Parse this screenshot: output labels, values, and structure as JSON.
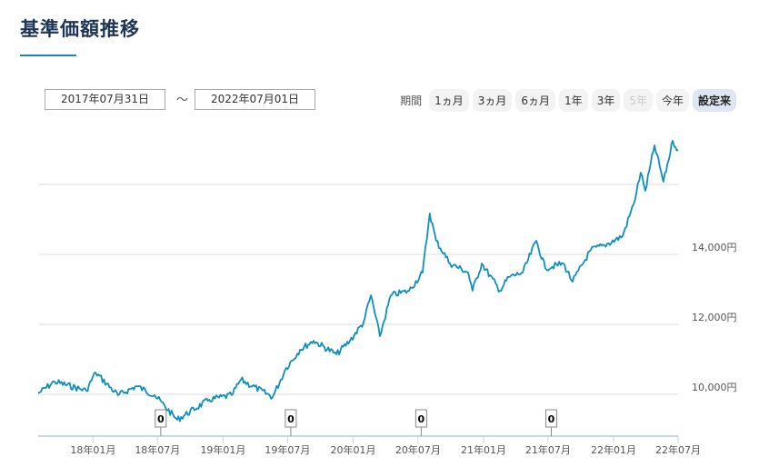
{
  "title": "基準価額推移",
  "range": {
    "from": "2017年07月31日",
    "separator": "～",
    "to": "2022年07月01日"
  },
  "periods": {
    "label": "期間",
    "buttons": [
      {
        "label": "1ヵ月",
        "state": "normal"
      },
      {
        "label": "3ヵ月",
        "state": "normal"
      },
      {
        "label": "6ヵ月",
        "state": "normal"
      },
      {
        "label": "1年",
        "state": "normal"
      },
      {
        "label": "3年",
        "state": "normal"
      },
      {
        "label": "5年",
        "state": "disabled"
      },
      {
        "label": "今年",
        "state": "normal"
      },
      {
        "label": "設定来",
        "state": "active"
      }
    ]
  },
  "chart_data": {
    "type": "line",
    "title": "基準価額推移",
    "xlabel": "",
    "ylabel": "",
    "xlim": [
      "2017-07-31",
      "2022-07-01"
    ],
    "ylim": [
      8800,
      18100
    ],
    "grid": true,
    "line_color": "#0e8fc0",
    "y_ticks": [
      {
        "value": 10000,
        "label": "10,000円"
      },
      {
        "value": 12000,
        "label": "12,000円"
      },
      {
        "value": 14000,
        "label": "14,000円"
      },
      {
        "value": 16000,
        "label": ""
      }
    ],
    "x_ticks": [
      {
        "date": "2018-01-01",
        "label": "18年01月"
      },
      {
        "date": "2018-07-01",
        "label": "18年07月"
      },
      {
        "date": "2019-01-01",
        "label": "19年01月"
      },
      {
        "date": "2019-07-01",
        "label": "19年07月"
      },
      {
        "date": "2020-01-01",
        "label": "20年01月"
      },
      {
        "date": "2020-07-01",
        "label": "20年07月"
      },
      {
        "date": "2021-01-01",
        "label": "21年01月"
      },
      {
        "date": "2021-07-01",
        "label": "21年07月"
      },
      {
        "date": "2022-01-01",
        "label": "22年01月"
      },
      {
        "date": "2022-07-01",
        "label": "22年07月"
      }
    ],
    "annotations": [
      {
        "date": "2018-07-10",
        "label": "0"
      },
      {
        "date": "2019-07-10",
        "label": "0"
      },
      {
        "date": "2020-07-10",
        "label": "0"
      },
      {
        "date": "2021-07-10",
        "label": "0"
      }
    ],
    "series": [
      {
        "name": "基準価額",
        "points": [
          [
            "2017-07-31",
            10026
          ],
          [
            "2017-09-15",
            10364
          ],
          [
            "2017-12-13",
            10104
          ],
          [
            "2018-01-08",
            10623
          ],
          [
            "2018-03-12",
            9974
          ],
          [
            "2018-05-03",
            10234
          ],
          [
            "2018-06-23",
            9974
          ],
          [
            "2018-08-25",
            9273
          ],
          [
            "2018-11-23",
            9844
          ],
          [
            "2019-01-25",
            9974
          ],
          [
            "2019-02-20",
            10416
          ],
          [
            "2019-05-20",
            9922
          ],
          [
            "2019-06-27",
            10753
          ],
          [
            "2019-08-05",
            11273
          ],
          [
            "2019-09-12",
            11532
          ],
          [
            "2019-11-15",
            11143
          ],
          [
            "2019-12-23",
            11532
          ],
          [
            "2020-01-30",
            12052
          ],
          [
            "2020-02-20",
            12831
          ],
          [
            "2020-03-16",
            11662
          ],
          [
            "2020-04-16",
            12831
          ],
          [
            "2020-06-06",
            12961
          ],
          [
            "2020-07-14",
            13480
          ],
          [
            "2020-08-03",
            15168
          ],
          [
            "2020-08-21",
            14389
          ],
          [
            "2020-09-29",
            13740
          ],
          [
            "2020-11-19",
            13480
          ],
          [
            "2020-12-01",
            12961
          ],
          [
            "2020-12-27",
            13740
          ],
          [
            "2021-02-16",
            12961
          ],
          [
            "2021-03-13",
            13350
          ],
          [
            "2021-04-21",
            13480
          ],
          [
            "2021-05-29",
            14389
          ],
          [
            "2021-06-23",
            13610
          ],
          [
            "2021-08-13",
            13740
          ],
          [
            "2021-09-08",
            13220
          ],
          [
            "2021-10-29",
            14129
          ],
          [
            "2021-12-06",
            14259
          ],
          [
            "2022-01-26",
            14519
          ],
          [
            "2022-02-26",
            15428
          ],
          [
            "2022-03-18",
            16338
          ],
          [
            "2022-03-31",
            15818
          ],
          [
            "2022-04-26",
            17116
          ],
          [
            "2022-05-21",
            16077
          ],
          [
            "2022-06-16",
            17246
          ],
          [
            "2022-07-01",
            16986
          ]
        ]
      }
    ]
  }
}
